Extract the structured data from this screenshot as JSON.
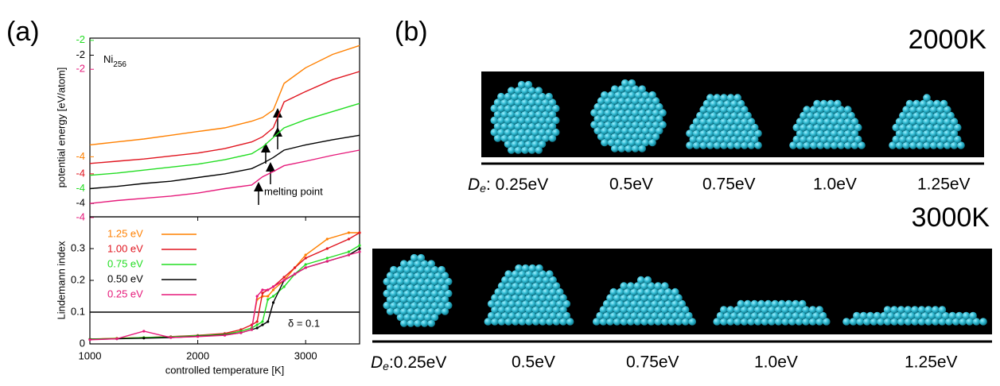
{
  "panel_labels": [
    "(a)",
    "(b)"
  ],
  "chart_data": [
    {
      "type": "line",
      "ylabel": "potential energy [eV/atom]",
      "annotations": {
        "formula": "Ni",
        "formula_sub": "256",
        "arrow_note": "melting point"
      },
      "xlim": [
        1000,
        3500
      ],
      "x": [
        1000,
        1250,
        1500,
        1750,
        2000,
        2250,
        2500,
        2600,
        2700,
        2800,
        3000,
        3250,
        3500
      ],
      "series": [
        {
          "name": "1.25 eV",
          "color": "#ff8000",
          "ylim": [
            -4.81,
            -2.4
          ],
          "yticks": [
            -4
          ],
          "values": [
            -3.84,
            -3.8,
            -3.76,
            -3.71,
            -3.66,
            -3.61,
            -3.52,
            -3.47,
            -3.37,
            -3.01,
            -2.8,
            -2.62,
            -2.5
          ]
        },
        {
          "name": "1.00 eV",
          "color": "#e0141e",
          "ylim": [
            -4.58,
            -2.17
          ],
          "yticks": [
            -4
          ],
          "values": [
            -3.86,
            -3.83,
            -3.8,
            -3.76,
            -3.72,
            -3.66,
            -3.57,
            -3.5,
            -3.38,
            -3.03,
            -2.89,
            -2.73,
            -2.62
          ]
        },
        {
          "name": "0.75 eV",
          "color": "#22dd22",
          "ylim": [
            -4.38,
            -1.97
          ],
          "yticks": [
            -4,
            -2
          ],
          "values": [
            -3.82,
            -3.79,
            -3.75,
            -3.71,
            -3.67,
            -3.61,
            -3.53,
            -3.44,
            -3.31,
            -3.18,
            -3.07,
            -2.96,
            -2.85
          ]
        },
        {
          "name": "0.50 eV",
          "color": "#000000",
          "ylim": [
            -4.18,
            -1.77
          ],
          "yticks": [
            -4,
            -2
          ],
          "values": [
            -3.8,
            -3.77,
            -3.73,
            -3.7,
            -3.65,
            -3.6,
            -3.53,
            -3.46,
            -3.38,
            -3.28,
            -3.21,
            -3.14,
            -3.08
          ]
        },
        {
          "name": "0.25 eV",
          "color": "#e6197a",
          "ylim": [
            -3.99,
            -1.58
          ],
          "yticks": [
            -4,
            -2
          ],
          "values": [
            -3.81,
            -3.77,
            -3.74,
            -3.71,
            -3.67,
            -3.61,
            -3.56,
            -3.45,
            -3.38,
            -3.3,
            -3.24,
            -3.16,
            -3.09
          ]
        }
      ]
    },
    {
      "type": "line",
      "ylabel": "Lindemann index",
      "xlabel": "controlled temperature [K]",
      "xlim": [
        1000,
        3500
      ],
      "xticks": [
        1000,
        2000,
        3000
      ],
      "ylim": [
        0,
        0.4
      ],
      "yticks": [
        0,
        0.1,
        0.2,
        0.3
      ],
      "legend": "upper left",
      "reference_line": {
        "value": 0.1,
        "label": "δ = 0.1"
      },
      "x": [
        1000,
        1250,
        1500,
        1750,
        2000,
        2250,
        2400,
        2500,
        2550,
        2600,
        2650,
        2700,
        2800,
        2900,
        3000,
        3200,
        3400,
        3500
      ],
      "series": [
        {
          "name": "1.25 eV",
          "color": "#ff8000",
          "values": [
            0.015,
            0.018,
            0.02,
            0.022,
            0.025,
            0.03,
            0.04,
            0.05,
            0.14,
            0.15,
            0.15,
            0.17,
            0.2,
            0.24,
            0.28,
            0.33,
            0.35,
            0.35
          ]
        },
        {
          "name": "1.00 eV",
          "color": "#e0141e",
          "values": [
            0.015,
            0.017,
            0.02,
            0.023,
            0.027,
            0.033,
            0.045,
            0.06,
            0.07,
            0.16,
            0.17,
            0.18,
            0.21,
            0.24,
            0.27,
            0.3,
            0.33,
            0.35
          ]
        },
        {
          "name": "0.75 eV",
          "color": "#22dd22",
          "values": [
            0.015,
            0.017,
            0.02,
            0.022,
            0.026,
            0.03,
            0.04,
            0.05,
            0.06,
            0.07,
            0.14,
            0.15,
            0.18,
            0.22,
            0.25,
            0.27,
            0.29,
            0.31
          ]
        },
        {
          "name": "0.50 eV",
          "color": "#000000",
          "values": [
            0.014,
            0.016,
            0.018,
            0.02,
            0.024,
            0.028,
            0.035,
            0.045,
            0.05,
            0.06,
            0.07,
            0.13,
            0.2,
            0.22,
            0.24,
            0.26,
            0.28,
            0.3
          ]
        },
        {
          "name": "0.25 eV",
          "color": "#e6197a",
          "values": [
            0.013,
            0.016,
            0.04,
            0.02,
            0.023,
            0.027,
            0.035,
            0.045,
            0.15,
            0.17,
            0.17,
            0.18,
            0.2,
            0.22,
            0.24,
            0.26,
            0.28,
            0.29
          ]
        }
      ]
    }
  ],
  "panel_b": {
    "rows": [
      {
        "title": "2000K",
        "symbol": "D",
        "symbol_sub": "e",
        "labels": [
          ": 0.25eV",
          "0.5eV",
          "0.75eV",
          "1.0eV",
          "1.25eV"
        ]
      },
      {
        "title": "3000K",
        "symbol": "D",
        "symbol_sub": "e",
        "labels": [
          ":0.25eV",
          "0.5eV",
          "0.75eV",
          "1.0eV",
          "1.25eV"
        ]
      }
    ]
  }
}
